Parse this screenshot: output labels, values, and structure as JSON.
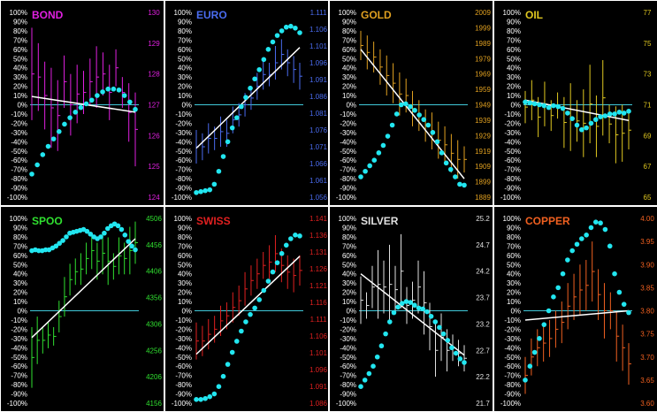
{
  "colors": {
    "background": "#000000",
    "frame": "#ffffff",
    "zero_line": "#40c8d8",
    "dots": "#22e6f0",
    "trend": "#ffffff",
    "pct_axis": "#ffffff"
  },
  "pct_axis_labels": [
    "100%",
    "90%",
    "80%",
    "70%",
    "60%",
    "50%",
    "40%",
    "30%",
    "20%",
    "10%",
    "0%",
    "-10%",
    "-20%",
    "-30%",
    "-40%",
    "-50%",
    "-60%",
    "-70%",
    "-80%",
    "-90%",
    "-100%"
  ],
  "chart_data": [
    {
      "type": "bar",
      "title": "BOND",
      "color": "#e020e0",
      "price_ticks": [
        "130",
        "129",
        "128",
        "127",
        "126",
        "125",
        "124"
      ],
      "price_range": [
        124,
        130
      ],
      "bars": [
        {
          "h": 129.5,
          "l": 126.5
        },
        {
          "h": 129.0,
          "l": 126.8
        },
        {
          "h": 128.4,
          "l": 126.2
        },
        {
          "h": 128.2,
          "l": 125.6
        },
        {
          "h": 127.8,
          "l": 125.5
        },
        {
          "h": 128.6,
          "l": 126.9
        },
        {
          "h": 128.0,
          "l": 126.0
        },
        {
          "h": 128.3,
          "l": 126.4
        },
        {
          "h": 128.1,
          "l": 126.7
        },
        {
          "h": 128.5,
          "l": 127.0
        },
        {
          "h": 128.9,
          "l": 126.9
        },
        {
          "h": 128.7,
          "l": 127.3
        },
        {
          "h": 128.3,
          "l": 126.5
        },
        {
          "h": 128.8,
          "l": 127.6
        },
        {
          "h": 127.9,
          "l": 126.9
        },
        {
          "h": 127.7,
          "l": 125.8
        },
        {
          "h": 127.4,
          "l": 125.0
        }
      ],
      "dots": [
        -75,
        -65,
        -54,
        -45,
        -37,
        -29,
        -21,
        -14,
        -8,
        -3,
        1,
        5,
        10,
        14,
        17,
        17,
        16,
        10,
        3,
        -5
      ],
      "trend": [
        9,
        -8
      ]
    },
    {
      "type": "bar",
      "title": "EURO",
      "color": "#4a6cf0",
      "price_ticks": [
        "1.111",
        "1.106",
        "1.101",
        "1.096",
        "1.091",
        "1.086",
        "1.081",
        "1.076",
        "1.071",
        "1.066",
        "1.061",
        "1.056"
      ],
      "price_range": [
        1.056,
        1.111
      ],
      "bars": [
        {
          "h": 1.076,
          "l": 1.066
        },
        {
          "h": 1.075,
          "l": 1.067
        },
        {
          "h": 1.078,
          "l": 1.069
        },
        {
          "h": 1.077,
          "l": 1.07
        },
        {
          "h": 1.08,
          "l": 1.071
        },
        {
          "h": 1.079,
          "l": 1.071
        },
        {
          "h": 1.083,
          "l": 1.075
        },
        {
          "h": 1.084,
          "l": 1.077
        },
        {
          "h": 1.087,
          "l": 1.08
        },
        {
          "h": 1.089,
          "l": 1.082
        },
        {
          "h": 1.093,
          "l": 1.085
        },
        {
          "h": 1.097,
          "l": 1.088
        },
        {
          "h": 1.096,
          "l": 1.089
        },
        {
          "h": 1.101,
          "l": 1.091
        },
        {
          "h": 1.103,
          "l": 1.094
        },
        {
          "h": 1.1,
          "l": 1.092
        },
        {
          "h": 1.098,
          "l": 1.09
        },
        {
          "h": 1.096,
          "l": 1.088
        }
      ],
      "dots": [
        -95,
        -94,
        -93,
        -92,
        -86,
        -72,
        -56,
        -40,
        -25,
        -14,
        -2,
        8,
        18,
        28,
        38,
        49,
        60,
        68,
        75,
        80,
        84,
        85,
        83,
        78
      ],
      "trend": [
        -47,
        62
      ]
    },
    {
      "type": "bar",
      "title": "GOLD",
      "color": "#e0a020",
      "price_ticks": [
        "2009",
        "1999",
        "1989",
        "1979",
        "1969",
        "1959",
        "1949",
        "1939",
        "1929",
        "1919",
        "1909",
        "1899",
        "1889"
      ],
      "price_range": [
        1889,
        2009
      ],
      "bars": [
        {
          "h": 1997,
          "l": 1978
        },
        {
          "h": 1994,
          "l": 1972
        },
        {
          "h": 1990,
          "l": 1970
        },
        {
          "h": 1985,
          "l": 1962
        },
        {
          "h": 1981,
          "l": 1955
        },
        {
          "h": 1976,
          "l": 1950
        },
        {
          "h": 1970,
          "l": 1942
        },
        {
          "h": 1966,
          "l": 1944
        },
        {
          "h": 1958,
          "l": 1935
        },
        {
          "h": 1952,
          "l": 1932
        },
        {
          "h": 1946,
          "l": 1925
        },
        {
          "h": 1944,
          "l": 1920
        },
        {
          "h": 1938,
          "l": 1914
        },
        {
          "h": 1935,
          "l": 1911
        },
        {
          "h": 1930,
          "l": 1905
        },
        {
          "h": 1926,
          "l": 1901
        },
        {
          "h": 1922,
          "l": 1905
        }
      ],
      "dots": [
        -78,
        -72,
        -66,
        -60,
        -52,
        -44,
        -34,
        -22,
        -10,
        0,
        1,
        -2,
        -6,
        -11,
        -16,
        -22,
        -30,
        -40,
        -52,
        -63,
        -70,
        -78,
        -86,
        -87
      ],
      "trend": [
        60,
        -80
      ]
    },
    {
      "type": "bar",
      "title": "OIL",
      "color": "#e0c820",
      "price_ticks": [
        "77",
        "75",
        "73",
        "71",
        "69",
        "67",
        "65"
      ],
      "price_range": [
        65,
        77
      ],
      "bars": [
        {
          "h": 71.9,
          "l": 69.8
        },
        {
          "h": 72.6,
          "l": 70.0
        },
        {
          "h": 71.5,
          "l": 68.9
        },
        {
          "h": 72.5,
          "l": 69.6
        },
        {
          "h": 71.3,
          "l": 69.3
        },
        {
          "h": 71.8,
          "l": 70.1
        },
        {
          "h": 71.5,
          "l": 68.2
        },
        {
          "h": 72.4,
          "l": 68.0
        },
        {
          "h": 71.3,
          "l": 68.6
        },
        {
          "h": 72.0,
          "l": 67.6
        },
        {
          "h": 73.6,
          "l": 68.5
        },
        {
          "h": 71.6,
          "l": 67.6
        },
        {
          "h": 73.9,
          "l": 69.0
        },
        {
          "h": 71.0,
          "l": 68.5
        },
        {
          "h": 70.9,
          "l": 67.2
        },
        {
          "h": 71.0,
          "l": 67.3
        },
        {
          "h": 70.6,
          "l": 68.1
        }
      ],
      "dots": [
        3,
        2,
        1,
        0,
        -1,
        -3,
        -1,
        -2,
        -4,
        -9,
        -15,
        -22,
        -27,
        -25,
        -20,
        -16,
        -13,
        -12,
        -10,
        -10,
        -8,
        -9,
        -7
      ],
      "trend": [
        5,
        -17
      ]
    },
    {
      "type": "bar",
      "title": "SPOO",
      "color": "#30e030",
      "price_ticks": [
        "4506",
        "4456",
        "4406",
        "4356",
        "4306",
        "4256",
        "4206",
        "4156"
      ],
      "price_range": [
        4156,
        4506
      ],
      "bars": [
        {
          "h": 4300,
          "l": 4185
        },
        {
          "h": 4320,
          "l": 4230
        },
        {
          "h": 4300,
          "l": 4250
        },
        {
          "h": 4310,
          "l": 4260
        },
        {
          "h": 4300,
          "l": 4265
        },
        {
          "h": 4350,
          "l": 4290
        },
        {
          "h": 4395,
          "l": 4320
        },
        {
          "h": 4420,
          "l": 4360
        },
        {
          "h": 4430,
          "l": 4380
        },
        {
          "h": 4440,
          "l": 4380
        },
        {
          "h": 4460,
          "l": 4400
        },
        {
          "h": 4480,
          "l": 4410
        },
        {
          "h": 4460,
          "l": 4390
        },
        {
          "h": 4480,
          "l": 4400
        },
        {
          "h": 4470,
          "l": 4380
        },
        {
          "h": 4440,
          "l": 4390
        },
        {
          "h": 4470,
          "l": 4400
        },
        {
          "h": 4460,
          "l": 4400
        },
        {
          "h": 4490,
          "l": 4400
        },
        {
          "h": 4500,
          "l": 4420
        }
      ],
      "dots": [
        65,
        66,
        65,
        65,
        66,
        66,
        68,
        70,
        73,
        76,
        80,
        84,
        85,
        86,
        87,
        88,
        86,
        83,
        80,
        78,
        80,
        84,
        89,
        92,
        94,
        92,
        88,
        82,
        75,
        70,
        66
      ],
      "trend": [
        -29,
        78
      ]
    },
    {
      "type": "bar",
      "title": "SWISS",
      "color": "#e02020",
      "price_ticks": [
        "1.141",
        "1.136",
        "1.131",
        "1.126",
        "1.121",
        "1.116",
        "1.111",
        "1.106",
        "1.101",
        "1.096",
        "1.091",
        "1.086"
      ],
      "price_range": [
        1.086,
        1.141
      ],
      "bars": [
        {
          "h": 1.11,
          "l": 1.099
        },
        {
          "h": 1.109,
          "l": 1.1
        },
        {
          "h": 1.111,
          "l": 1.102
        },
        {
          "h": 1.112,
          "l": 1.104
        },
        {
          "h": 1.115,
          "l": 1.106
        },
        {
          "h": 1.116,
          "l": 1.108
        },
        {
          "h": 1.119,
          "l": 1.11
        },
        {
          "h": 1.121,
          "l": 1.112
        },
        {
          "h": 1.125,
          "l": 1.115
        },
        {
          "h": 1.127,
          "l": 1.118
        },
        {
          "h": 1.129,
          "l": 1.12
        },
        {
          "h": 1.131,
          "l": 1.123
        },
        {
          "h": 1.133,
          "l": 1.123
        },
        {
          "h": 1.136,
          "l": 1.125
        },
        {
          "h": 1.132,
          "l": 1.122
        },
        {
          "h": 1.13,
          "l": 1.12
        },
        {
          "h": 1.129,
          "l": 1.119
        },
        {
          "h": 1.13,
          "l": 1.121
        }
      ],
      "dots": [
        -96,
        -96,
        -95,
        -93,
        -90,
        -82,
        -71,
        -58,
        -45,
        -33,
        -22,
        -12,
        -4,
        3,
        12,
        22,
        32,
        42,
        52,
        62,
        71,
        78,
        82,
        81
      ],
      "trend": [
        -47,
        59
      ]
    },
    {
      "type": "bar",
      "title": "SILVER",
      "color": "#e0e0e0",
      "price_ticks": [
        "25.2",
        "24.7",
        "24.2",
        "23.7",
        "23.2",
        "22.7",
        "22.2",
        "21.7"
      ],
      "price_range": [
        21.7,
        25.2
      ],
      "bars": [
        {
          "h": 24.1,
          "l": 23.2
        },
        {
          "h": 23.8,
          "l": 23.3
        },
        {
          "h": 24.3,
          "l": 23.5
        },
        {
          "h": 24.6,
          "l": 23.3
        },
        {
          "h": 24.4,
          "l": 23.4
        },
        {
          "h": 24.7,
          "l": 23.2
        },
        {
          "h": 24.3,
          "l": 23.4
        },
        {
          "h": 24.9,
          "l": 23.5
        },
        {
          "h": 23.9,
          "l": 23.2
        },
        {
          "h": 24.0,
          "l": 23.3
        },
        {
          "h": 24.4,
          "l": 23.4
        },
        {
          "h": 24.2,
          "l": 23.0
        },
        {
          "h": 23.6,
          "l": 22.7
        },
        {
          "h": 23.2,
          "l": 22.2
        },
        {
          "h": 23.4,
          "l": 22.5
        },
        {
          "h": 23.1,
          "l": 22.3
        },
        {
          "h": 23.0,
          "l": 22.5
        },
        {
          "h": 22.9,
          "l": 22.4
        },
        {
          "h": 22.8,
          "l": 22.3
        }
      ],
      "dots": [
        -82,
        -75,
        -68,
        -60,
        -50,
        -38,
        -25,
        -12,
        -2,
        4,
        8,
        10,
        9,
        6,
        3,
        2,
        -1,
        -6,
        -12,
        -18,
        -25,
        -32,
        -40,
        -46,
        -52,
        -56
      ],
      "trend": [
        40,
        -48
      ]
    },
    {
      "type": "bar",
      "title": "COPPER",
      "color": "#f06020",
      "price_ticks": [
        "4.00",
        "3.95",
        "3.90",
        "3.85",
        "3.80",
        "3.75",
        "3.70",
        "3.65",
        "3.60"
      ],
      "price_range": [
        3.6,
        4.0
      ],
      "bars": [
        {
          "h": 3.7,
          "l": 3.62
        },
        {
          "h": 3.74,
          "l": 3.66
        },
        {
          "h": 3.76,
          "l": 3.68
        },
        {
          "h": 3.77,
          "l": 3.69
        },
        {
          "h": 3.78,
          "l": 3.7
        },
        {
          "h": 3.8,
          "l": 3.72
        },
        {
          "h": 3.82,
          "l": 3.73
        },
        {
          "h": 3.86,
          "l": 3.76
        },
        {
          "h": 3.88,
          "l": 3.78
        },
        {
          "h": 3.9,
          "l": 3.79
        },
        {
          "h": 3.91,
          "l": 3.8
        },
        {
          "h": 3.95,
          "l": 3.82
        },
        {
          "h": 3.89,
          "l": 3.78
        },
        {
          "h": 3.86,
          "l": 3.74
        },
        {
          "h": 3.84,
          "l": 3.76
        },
        {
          "h": 3.8,
          "l": 3.69
        },
        {
          "h": 3.77,
          "l": 3.67
        },
        {
          "h": 3.73,
          "l": 3.64
        }
      ],
      "dots": [
        -75,
        -60,
        -45,
        -30,
        -15,
        0,
        15,
        25,
        40,
        55,
        65,
        72,
        78,
        82,
        90,
        96,
        95,
        88,
        70,
        40,
        20,
        7,
        -2
      ],
      "trend": [
        -10,
        0
      ]
    }
  ]
}
